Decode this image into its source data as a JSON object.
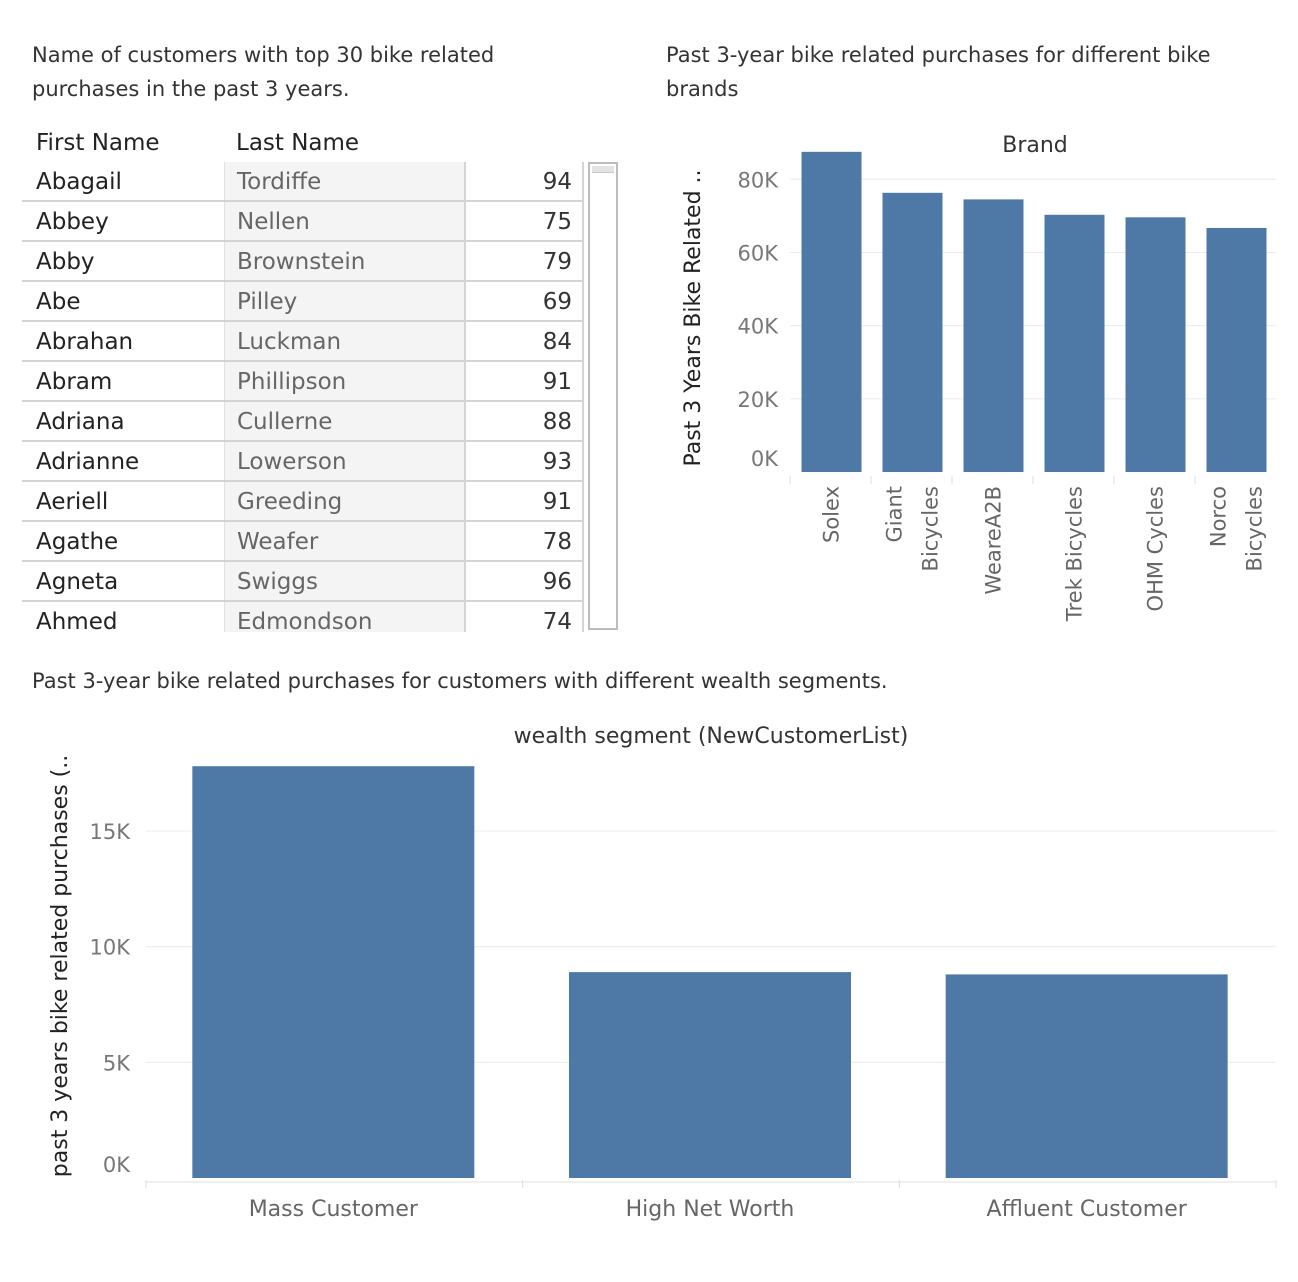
{
  "captions": {
    "table": "Name of customers with top 30 bike related purchases in the past 3 years.",
    "brand": "Past 3-year bike related purchases for different bike brands",
    "wealth": "Past 3-year bike related purchases for customers with different wealth segments."
  },
  "table": {
    "headers": [
      "First Name",
      "Last Name"
    ],
    "rows": [
      {
        "first": "Abagail",
        "last": "Tordiffe",
        "value": "94"
      },
      {
        "first": "Abbey",
        "last": "Nellen",
        "value": "75"
      },
      {
        "first": "Abby",
        "last": "Brownstein",
        "value": "79"
      },
      {
        "first": "Abe",
        "last": "Pilley",
        "value": "69"
      },
      {
        "first": "Abrahan",
        "last": "Luckman",
        "value": "84"
      },
      {
        "first": "Abram",
        "last": "Phillipson",
        "value": "91"
      },
      {
        "first": "Adriana",
        "last": "Cullerne",
        "value": "88"
      },
      {
        "first": "Adrianne",
        "last": "Lowerson",
        "value": "93"
      },
      {
        "first": "Aeriell",
        "last": "Greeding",
        "value": "91"
      },
      {
        "first": "Agathe",
        "last": "Weafer",
        "value": "78"
      },
      {
        "first": "Agneta",
        "last": "Swiggs",
        "value": "96"
      },
      {
        "first": "Ahmed",
        "last": "Edmondson",
        "value": "74"
      }
    ]
  },
  "chart_data": [
    {
      "type": "bar",
      "title": "Brand",
      "ylabel": "Past 3 Years Bike Related ..",
      "categories": [
        [
          "Solex"
        ],
        [
          "Giant",
          "Bicycles"
        ],
        [
          "WeareA2B"
        ],
        [
          "Trek Bicycles"
        ],
        [
          "OHM Cycles"
        ],
        [
          "Norco",
          "Bicycles"
        ]
      ],
      "values": [
        87500,
        76300,
        74500,
        70300,
        69600,
        66700
      ],
      "yticks": [
        0,
        20000,
        40000,
        60000,
        80000
      ],
      "ytick_labels": [
        "0K",
        "20K",
        "40K",
        "60K",
        "80K"
      ],
      "ylim": [
        0,
        88000
      ],
      "color": "#4e79a7",
      "grid": true
    },
    {
      "type": "bar",
      "title": "wealth segment (NewCustomerList)",
      "ylabel": "past 3 years bike related purchases (..",
      "categories": [
        "Mass Customer",
        "High Net Worth",
        "Affluent Customer"
      ],
      "values": [
        17800,
        8900,
        8800
      ],
      "yticks": [
        0,
        5000,
        10000,
        15000
      ],
      "ytick_labels": [
        "0K",
        "5K",
        "10K",
        "15K"
      ],
      "ylim": [
        0,
        18500
      ],
      "color": "#4e79a7",
      "grid": true
    }
  ]
}
